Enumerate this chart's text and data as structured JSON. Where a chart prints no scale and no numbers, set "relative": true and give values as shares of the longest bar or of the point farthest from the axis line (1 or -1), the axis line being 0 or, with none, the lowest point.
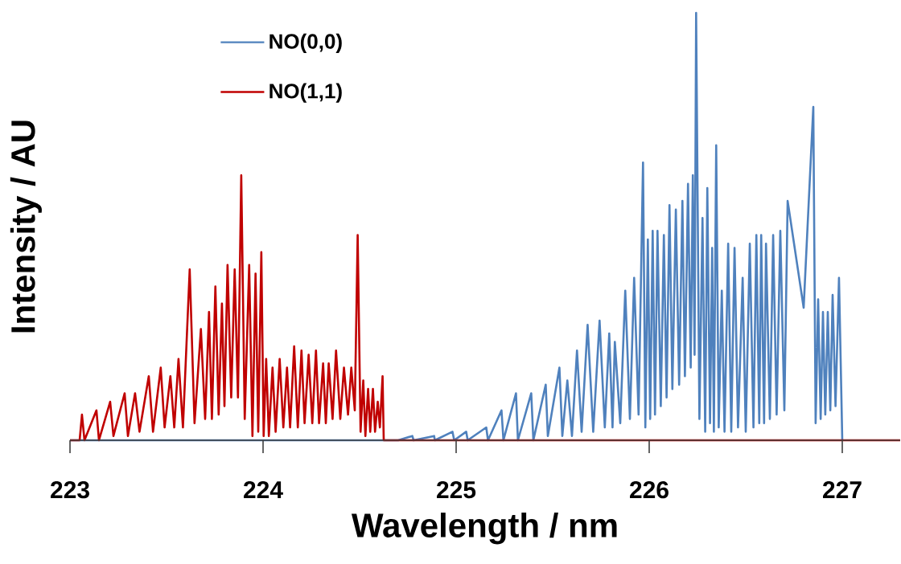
{
  "chart_data": {
    "type": "line",
    "relative": true,
    "xlabel": "Wavelength / nm",
    "ylabel": "Intensity / AU",
    "xlim": [
      223,
      227.3
    ],
    "xticks": [
      223,
      224,
      225,
      226,
      227
    ],
    "legend": "top left",
    "grid": false,
    "marker": "none",
    "line_style": "solid",
    "series": [
      {
        "name": "NO(0,0)",
        "color": "#4f81bd",
        "x": [
          223.0,
          224.7,
          224.773,
          224.78,
          224.886,
          224.89,
          224.981,
          224.99,
          225.052,
          225.06,
          225.156,
          225.165,
          225.235,
          225.245,
          225.31,
          225.32,
          225.389,
          225.4,
          225.464,
          225.475,
          225.535,
          225.55,
          225.576,
          225.6,
          225.626,
          225.65,
          225.681,
          225.71,
          225.743,
          225.77,
          225.793,
          225.81,
          225.822,
          225.85,
          225.876,
          225.9,
          225.922,
          225.945,
          225.968,
          225.98,
          225.993,
          226.005,
          226.018,
          226.03,
          226.043,
          226.06,
          226.076,
          226.09,
          226.105,
          226.12,
          226.138,
          226.155,
          226.172,
          226.185,
          226.201,
          226.215,
          226.226,
          226.235,
          226.243,
          226.26,
          226.276,
          226.29,
          226.301,
          226.315,
          226.326,
          226.335,
          226.347,
          226.36,
          226.376,
          226.39,
          226.409,
          226.425,
          226.442,
          226.46,
          226.484,
          226.5,
          226.521,
          226.54,
          226.555,
          226.57,
          226.58,
          226.595,
          226.605,
          226.625,
          226.642,
          226.66,
          226.679,
          226.7,
          226.717,
          226.8,
          226.85,
          226.862,
          226.875,
          226.888,
          226.9,
          226.912,
          226.925,
          226.938,
          226.95,
          226.965,
          226.983,
          227.0
        ],
        "values": [
          0,
          0,
          0.01,
          0,
          0.01,
          0,
          0.02,
          0,
          0.02,
          0,
          0.03,
          0,
          0.07,
          0,
          0.11,
          0,
          0.11,
          0,
          0.13,
          0.01,
          0.17,
          0.01,
          0.14,
          0.01,
          0.21,
          0.02,
          0.27,
          0.02,
          0.28,
          0.03,
          0.25,
          0.03,
          0.23,
          0.04,
          0.35,
          0.05,
          0.38,
          0.06,
          0.65,
          0.03,
          0.47,
          0.05,
          0.49,
          0.06,
          0.49,
          0.08,
          0.48,
          0.1,
          0.55,
          0.12,
          0.54,
          0.13,
          0.56,
          0.15,
          0.6,
          0.17,
          0.62,
          0.2,
          1.0,
          0.05,
          0.52,
          0.02,
          0.59,
          0.04,
          0.45,
          0.02,
          0.69,
          0.03,
          0.35,
          0.02,
          0.46,
          0.02,
          0.45,
          0.03,
          0.38,
          0.02,
          0.46,
          0.03,
          0.48,
          0.04,
          0.48,
          0.04,
          0.46,
          0.05,
          0.48,
          0.06,
          0.49,
          0.07,
          0.56,
          0.31,
          0.78,
          0.04,
          0.33,
          0.05,
          0.3,
          0.06,
          0.3,
          0.07,
          0.34,
          0.08,
          0.38,
          0
        ]
      },
      {
        "name": "NO(1,1)",
        "color": "#c00000",
        "x": [
          223.0,
          223.05,
          223.062,
          223.075,
          223.137,
          223.15,
          223.208,
          223.225,
          223.283,
          223.3,
          223.337,
          223.36,
          223.408,
          223.43,
          223.47,
          223.49,
          223.52,
          223.54,
          223.562,
          223.585,
          223.62,
          223.645,
          223.678,
          223.7,
          223.72,
          223.735,
          223.753,
          223.77,
          223.787,
          223.8,
          223.816,
          223.835,
          223.853,
          223.87,
          223.887,
          223.905,
          223.928,
          223.945,
          223.961,
          223.975,
          223.991,
          224.003,
          224.016,
          224.03,
          224.049,
          224.065,
          224.086,
          224.105,
          224.124,
          224.14,
          224.161,
          224.18,
          224.199,
          224.215,
          224.236,
          224.255,
          224.274,
          224.29,
          224.311,
          224.325,
          224.34,
          224.36,
          224.378,
          224.4,
          224.419,
          224.44,
          224.457,
          224.475,
          224.49,
          224.505,
          224.519,
          224.53,
          224.544,
          224.555,
          224.569,
          224.58,
          224.594,
          224.605,
          224.619,
          224.625,
          227.3
        ],
        "values": [
          0,
          0,
          0.06,
          0,
          0.07,
          0,
          0.09,
          0.01,
          0.11,
          0.01,
          0.11,
          0.02,
          0.15,
          0.02,
          0.17,
          0.03,
          0.15,
          0.03,
          0.19,
          0.03,
          0.4,
          0.04,
          0.26,
          0.05,
          0.3,
          0.05,
          0.36,
          0.06,
          0.32,
          0.08,
          0.41,
          0.1,
          0.4,
          0.1,
          0.62,
          0.05,
          0.41,
          0.01,
          0.39,
          0.02,
          0.44,
          0.01,
          0.19,
          0.01,
          0.17,
          0.02,
          0.19,
          0.03,
          0.17,
          0.03,
          0.22,
          0.03,
          0.21,
          0.04,
          0.2,
          0.04,
          0.21,
          0.04,
          0.18,
          0.04,
          0.18,
          0.05,
          0.21,
          0.05,
          0.17,
          0.06,
          0.17,
          0.07,
          0.48,
          0.02,
          0.14,
          0.01,
          0.12,
          0.02,
          0.12,
          0.02,
          0.09,
          0.03,
          0.15,
          0,
          0
        ]
      }
    ]
  }
}
